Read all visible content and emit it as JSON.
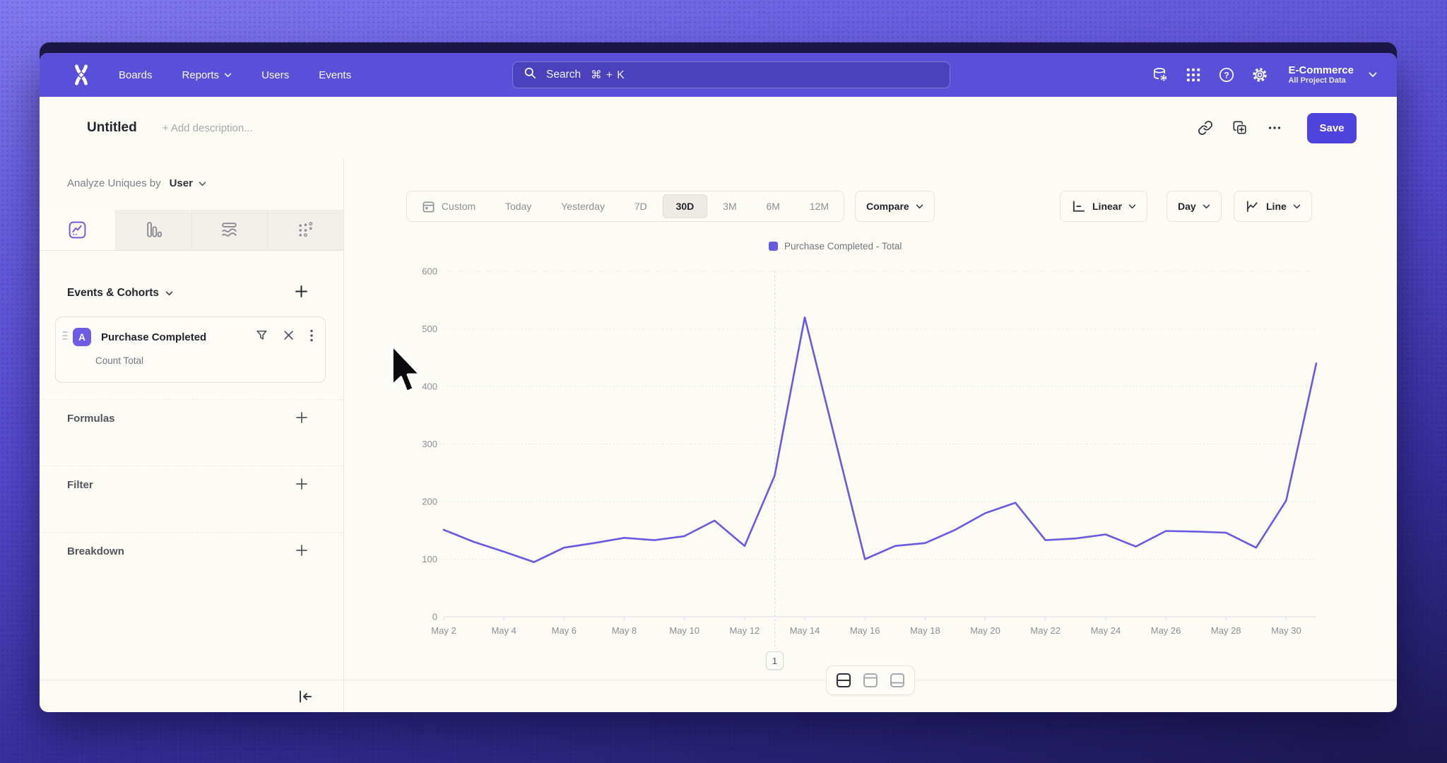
{
  "nav": {
    "items": [
      {
        "label": "Boards",
        "chevron": false
      },
      {
        "label": "Reports",
        "chevron": true
      },
      {
        "label": "Users",
        "chevron": false
      },
      {
        "label": "Events",
        "chevron": false
      }
    ],
    "search": {
      "label": "Search",
      "shortcut": "⌘ + K"
    },
    "project": {
      "name": "E-Commerce",
      "subtitle": "All Project Data"
    }
  },
  "header": {
    "title": "Untitled",
    "description_placeholder": "+ Add description...",
    "save_label": "Save"
  },
  "sidebar": {
    "analyze_prefix": "Analyze Uniques by",
    "analyze_value": "User",
    "events_header": "Events & Cohorts",
    "event": {
      "badge": "A",
      "name": "Purchase Completed",
      "metric": "Count Total"
    },
    "rows": [
      {
        "label": "Formulas"
      },
      {
        "label": "Filter"
      },
      {
        "label": "Breakdown"
      }
    ]
  },
  "toolbar": {
    "ranges": [
      "Custom",
      "Today",
      "Yesterday",
      "7D",
      "30D",
      "3M",
      "6M",
      "12M"
    ],
    "selected_range": "30D",
    "compare_label": "Compare",
    "scale_label": "Linear",
    "interval_label": "Day",
    "chart_type_label": "Line"
  },
  "chart_data": {
    "type": "line",
    "legend": "Purchase Completed - Total",
    "x": [
      "May 2",
      "May 3",
      "May 4",
      "May 5",
      "May 6",
      "May 7",
      "May 8",
      "May 9",
      "May 10",
      "May 11",
      "May 12",
      "May 13",
      "May 14",
      "May 15",
      "May 16",
      "May 17",
      "May 18",
      "May 19",
      "May 20",
      "May 21",
      "May 22",
      "May 23",
      "May 24",
      "May 25",
      "May 26",
      "May 27",
      "May 28",
      "May 29",
      "May 30",
      "May 31"
    ],
    "series": [
      {
        "name": "Purchase Completed - Total",
        "color": "#6859e2",
        "values": [
          151,
          130,
          113,
          95,
          120,
          128,
          137,
          133,
          140,
          167,
          123,
          245,
          520,
          310,
          100,
          123,
          128,
          151,
          180,
          198,
          133,
          136,
          143,
          122,
          149,
          148,
          146,
          120,
          202,
          440
        ]
      }
    ],
    "ylim": [
      0,
      600
    ],
    "yticks": [
      0,
      100,
      200,
      300,
      400,
      500,
      600
    ],
    "x_tick_every": 2,
    "grid": "horizontal-dashed",
    "legend_position": "top-center",
    "annotation": {
      "label": "1",
      "x_index": 11
    }
  },
  "colors": {
    "accent": "#5a4fd8",
    "save_button": "#4f43dd",
    "line": "#6859e2"
  }
}
